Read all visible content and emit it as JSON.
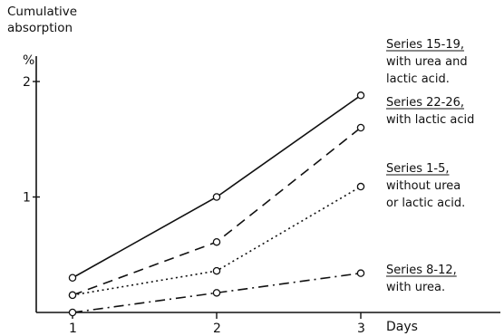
{
  "chart_data": {
    "type": "line",
    "ylabel": "Cumulative absorption",
    "yunit": "%",
    "xlabel": "Days",
    "x": [
      1,
      2,
      3
    ],
    "xticks": [
      "1",
      "2",
      "3"
    ],
    "yticks": [
      "1",
      "2"
    ],
    "ylim": [
      0,
      2
    ],
    "xlim": [
      1,
      3
    ],
    "grid": false,
    "series": [
      {
        "name": "Series 15-19,",
        "description": [
          "with urea and",
          "lactic acid."
        ],
        "style": "solid",
        "values": [
          0.3,
          1.0,
          1.88
        ]
      },
      {
        "name": "Series 22-26,",
        "description": [
          "with lactic acid"
        ],
        "style": "dashed",
        "values": [
          0.15,
          0.61,
          1.6
        ]
      },
      {
        "name": "Series 1-5,",
        "description": [
          "without urea",
          "or lactic acid."
        ],
        "style": "dotted",
        "values": [
          0.15,
          0.36,
          1.09
        ]
      },
      {
        "name": "Series 8-12,",
        "description": [
          "with urea."
        ],
        "style": "dashdot",
        "values": [
          0.0,
          0.17,
          0.34
        ]
      }
    ]
  }
}
